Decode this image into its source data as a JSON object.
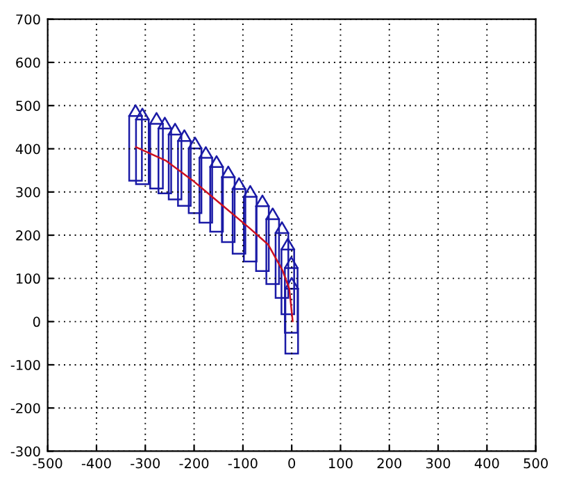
{
  "chart_data": {
    "type": "line",
    "series": [
      {
        "type": "bar",
        "color": "#1a1aa6",
        "x": [
          -320,
          -306,
          -277,
          -260,
          -239,
          -220,
          -198,
          -176,
          -154,
          -130,
          -108,
          -85,
          -60,
          -39,
          -20,
          -8,
          -1,
          0
        ],
        "base": [
          326,
          318,
          308,
          297,
          283,
          268,
          251,
          229,
          208,
          184,
          157,
          139,
          117,
          87,
          55,
          17,
          -26,
          -74
        ],
        "values": [
          150,
          150,
          150,
          150,
          150,
          150,
          150,
          150,
          150,
          150,
          150,
          150,
          150,
          150,
          150,
          150,
          150,
          150
        ]
      },
      {
        "color": "#1a1aa6",
        "x": [
          -333,
          -320,
          -307
        ],
        "values": [
          476,
          501,
          476
        ]
      },
      {
        "color": "#1a1aa6",
        "x": [
          -319,
          -306,
          -293
        ],
        "values": [
          468,
          493,
          468
        ]
      },
      {
        "color": "#1a1aa6",
        "x": [
          -290,
          -277,
          -264
        ],
        "values": [
          458,
          483,
          458
        ]
      },
      {
        "color": "#1a1aa6",
        "x": [
          -273,
          -260,
          -247
        ],
        "values": [
          447,
          472,
          447
        ]
      },
      {
        "color": "#1a1aa6",
        "x": [
          -252,
          -239,
          -226
        ],
        "values": [
          433,
          458,
          433
        ]
      },
      {
        "color": "#1a1aa6",
        "x": [
          -233,
          -220,
          -207
        ],
        "values": [
          418,
          443,
          418
        ]
      },
      {
        "color": "#1a1aa6",
        "x": [
          -211,
          -198,
          -185
        ],
        "values": [
          401,
          426,
          401
        ]
      },
      {
        "color": "#1a1aa6",
        "x": [
          -189,
          -176,
          -163
        ],
        "values": [
          379,
          404,
          379
        ]
      },
      {
        "color": "#1a1aa6",
        "x": [
          -167,
          -154,
          -141
        ],
        "values": [
          358,
          383,
          358
        ]
      },
      {
        "color": "#1a1aa6",
        "x": [
          -143,
          -130,
          -117
        ],
        "values": [
          334,
          359,
          334
        ]
      },
      {
        "color": "#1a1aa6",
        "x": [
          -121,
          -108,
          -95
        ],
        "values": [
          307,
          332,
          307
        ]
      },
      {
        "color": "#1a1aa6",
        "x": [
          -98,
          -85,
          -72
        ],
        "values": [
          289,
          314,
          289
        ]
      },
      {
        "color": "#1a1aa6",
        "x": [
          -73,
          -60,
          -47
        ],
        "values": [
          267,
          292,
          267
        ]
      },
      {
        "color": "#1a1aa6",
        "x": [
          -52,
          -39,
          -26
        ],
        "values": [
          237,
          262,
          237
        ]
      },
      {
        "color": "#1a1aa6",
        "x": [
          -33,
          -20,
          -7
        ],
        "values": [
          205,
          230,
          205
        ]
      },
      {
        "color": "#1a1aa6",
        "x": [
          -21,
          -8,
          5
        ],
        "values": [
          167,
          192,
          167
        ]
      },
      {
        "color": "#1a1aa6",
        "x": [
          -14,
          -1,
          12
        ],
        "values": [
          124,
          149,
          124
        ]
      },
      {
        "color": "#1a1aa6",
        "x": [
          -13,
          0,
          13
        ],
        "values": [
          76,
          101,
          76
        ]
      },
      {
        "color": "#cc1020",
        "x": [
          -319,
          -257,
          -200,
          -143,
          -86,
          -48,
          -19,
          -5,
          2
        ],
        "values": [
          404,
          372,
          324,
          270,
          216,
          178,
          119,
          76,
          1
        ]
      }
    ],
    "xlim": [
      -500,
      500
    ],
    "xticks": [
      -500,
      -400,
      -300,
      -200,
      -100,
      0,
      100,
      200,
      300,
      400,
      500
    ],
    "ylim": [
      -300,
      700
    ],
    "yticks": [
      -300,
      -200,
      -100,
      0,
      100,
      200,
      300,
      400,
      500,
      600,
      700
    ],
    "grid": true,
    "marker": "none",
    "line_style": "solid",
    "legend": false
  }
}
